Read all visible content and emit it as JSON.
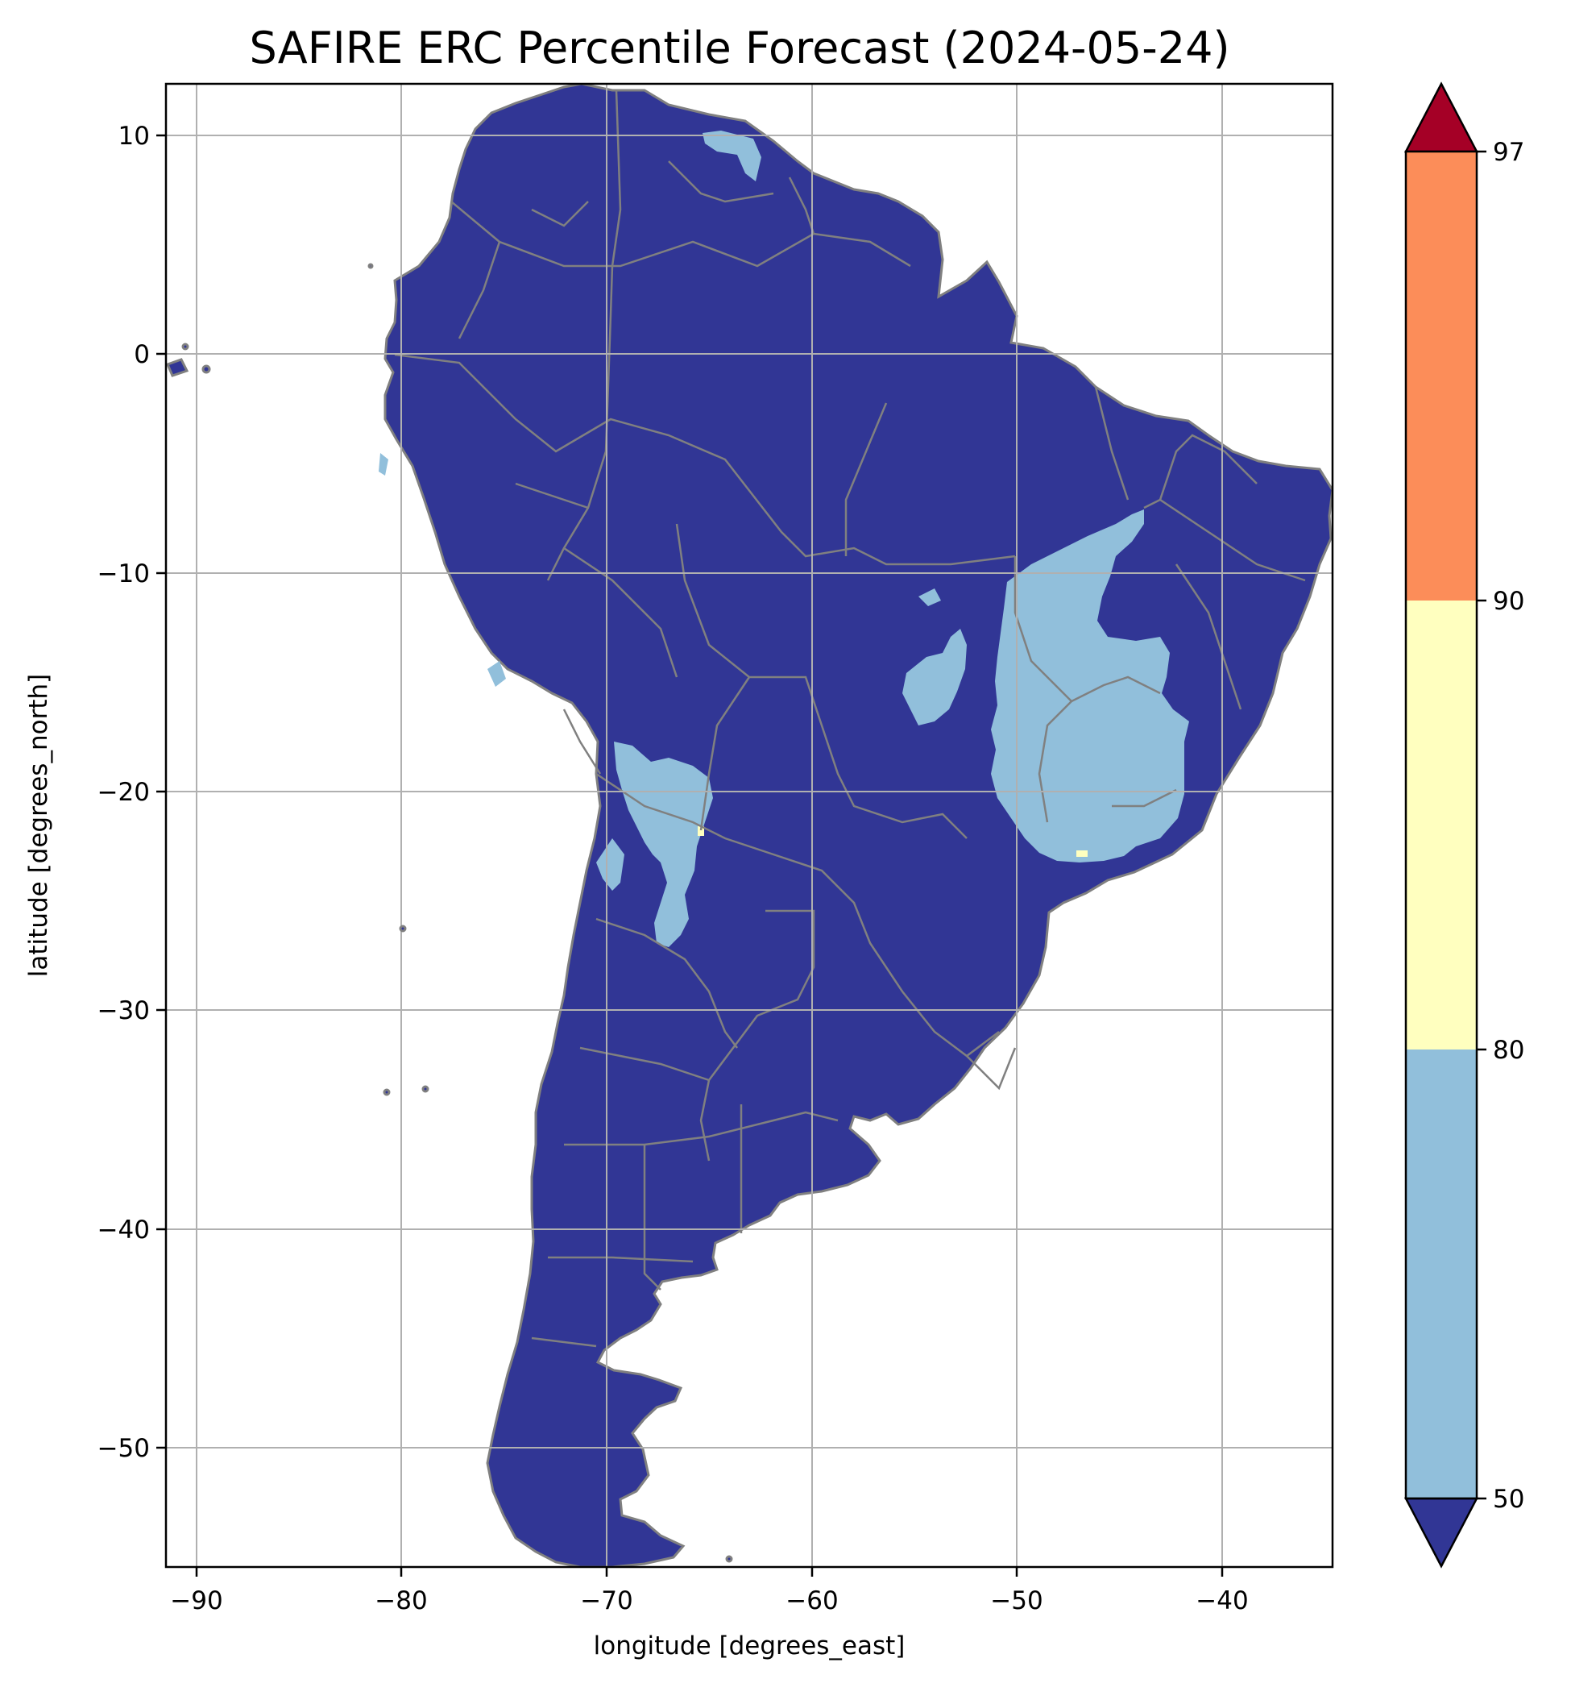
{
  "title": "SAFIRE ERC Percentile Forecast (2024-05-24)",
  "xlabel": "longitude [degrees_east]",
  "ylabel": "latitude [degrees_north]",
  "x_ticks": [
    {
      "value": -90,
      "label": "−90"
    },
    {
      "value": -80,
      "label": "−80"
    },
    {
      "value": -70,
      "label": "−70"
    },
    {
      "value": -60,
      "label": "−60"
    },
    {
      "value": -50,
      "label": "−50"
    },
    {
      "value": -40,
      "label": "−40"
    }
  ],
  "y_ticks": [
    {
      "value": 10,
      "label": "10"
    },
    {
      "value": 0,
      "label": "0"
    },
    {
      "value": -10,
      "label": "−10"
    },
    {
      "value": -20,
      "label": "−20"
    },
    {
      "value": -30,
      "label": "−30"
    },
    {
      "value": -40,
      "label": "−40"
    },
    {
      "value": -50,
      "label": "−50"
    }
  ],
  "colorbar": {
    "levels": [
      {
        "label": "50",
        "value": 50
      },
      {
        "label": "80",
        "value": 80
      },
      {
        "label": "90",
        "value": 90
      },
      {
        "label": "97",
        "value": 97
      }
    ],
    "colors": {
      "below": "#313695",
      "b50_80": "#91bfdb",
      "b80_90": "#ffffbf",
      "b90_97": "#fc8d59",
      "above": "#a50026"
    }
  },
  "map_colors": {
    "land": "#313695",
    "elevated": "#91bfdb",
    "high": "#ffffbf",
    "border": "#808080",
    "grid": "#b0b0b0"
  }
}
